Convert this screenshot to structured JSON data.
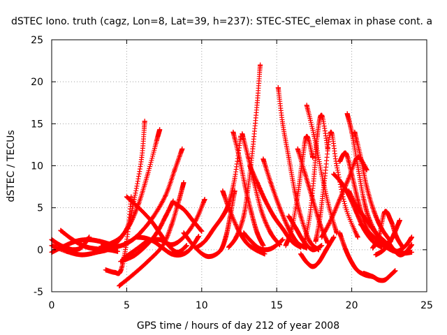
{
  "chart_data": {
    "type": "scatter",
    "title": "dSTEC Iono. truth (cagz, Lon=8, Lat=39, h=237): STEC-STEC_elemax in phase cont. a",
    "xlabel": "GPS time / hours of day 212 of year 2008",
    "ylabel": "dSTEC  / TECUs",
    "xlim": [
      0,
      25
    ],
    "ylim": [
      -5,
      25
    ],
    "xticks": [
      "0",
      "5",
      "10",
      "15",
      "20",
      "25"
    ],
    "yticks": [
      "-5",
      "0",
      "5",
      "10",
      "15",
      "20",
      "25"
    ],
    "grid": true,
    "marker": "+",
    "color": "#ff0000",
    "series": [
      {
        "x": [
          0,
          0.5,
          1,
          1.5,
          2,
          2.5
        ],
        "y": [
          1.2,
          0.6,
          0.2,
          0.0,
          0.3,
          1.5
        ]
      },
      {
        "x": [
          0,
          0.8,
          1.6,
          2.4,
          3.2,
          4.0
        ],
        "y": [
          -0.3,
          0.4,
          1.0,
          1.2,
          1.0,
          0.6
        ]
      },
      {
        "x": [
          0.6,
          1.4,
          2.2,
          3.0,
          3.8,
          4.4
        ],
        "y": [
          2.3,
          1.2,
          0.4,
          0.1,
          0.0,
          -0.2
        ]
      },
      {
        "x": [
          0,
          1,
          2,
          3,
          4,
          5,
          5.5,
          6,
          6.2
        ],
        "y": [
          0.5,
          -0.2,
          -0.6,
          -0.3,
          0.3,
          2.5,
          6,
          11,
          15.3
        ]
      },
      {
        "x": [
          3.3,
          4,
          4.6,
          5.2,
          5.8,
          6.4,
          7.0,
          7.2
        ],
        "y": [
          0.4,
          0.8,
          1.5,
          3,
          5.5,
          9,
          13,
          14.3
        ]
      },
      {
        "x": [
          3.5,
          4.2,
          4.8,
          5.4,
          6.0,
          6.8,
          7.6,
          8.2,
          8.7
        ],
        "y": [
          0.0,
          0.3,
          0.6,
          1.2,
          2.2,
          4.0,
          6.5,
          9.5,
          12
        ]
      },
      {
        "x": [
          3.6,
          4.2,
          4.6,
          5.0,
          5.3
        ],
        "y": [
          -2.4,
          -2.7,
          -2.5,
          1,
          6.3
        ]
      },
      {
        "x": [
          4.5,
          5.4,
          6.4,
          7.4,
          8.0,
          8.5,
          8.8
        ],
        "y": [
          -4.3,
          -3,
          -1.4,
          0.5,
          3,
          6,
          8
        ]
      },
      {
        "x": [
          4.6,
          5.5,
          6.3,
          7.0,
          7.6,
          8.1
        ],
        "y": [
          -1.4,
          -0.7,
          0.5,
          2.0,
          4.0,
          5.8
        ]
      },
      {
        "x": [
          4.8,
          5.6,
          6.4,
          7.2,
          8.0,
          8.8,
          9.6,
          10.2
        ],
        "y": [
          -1.0,
          0.0,
          1.0,
          1.2,
          0.6,
          1.5,
          3.5,
          6.0
        ]
      },
      {
        "x": [
          5.0,
          5.8,
          6.6,
          7.2,
          7.8,
          8.4,
          9.0
        ],
        "y": [
          6.3,
          5.0,
          3.5,
          2.0,
          0.5,
          -0.3,
          0.5
        ]
      },
      {
        "x": [
          5.6,
          6.2,
          6.8,
          7.4,
          8.0,
          8.6,
          9.2,
          9.8
        ],
        "y": [
          1.5,
          1.4,
          1.0,
          0.2,
          -0.5,
          -0.6,
          0.0,
          1.6
        ]
      },
      {
        "x": [
          8.2,
          8.8,
          9.4,
          10.0
        ],
        "y": [
          5.5,
          4.8,
          3.5,
          2.2
        ]
      },
      {
        "x": [
          8.8,
          9.6,
          10.4,
          11.2,
          11.6,
          11.9,
          12.2
        ],
        "y": [
          2.0,
          0.2,
          -0.8,
          -0.2,
          1.5,
          4,
          7
        ]
      },
      {
        "x": [
          9.6,
          10.2,
          10.8,
          11.4,
          11.8,
          12.2,
          12.6
        ],
        "y": [
          0.2,
          1.0,
          2.5,
          4.0,
          5.5,
          8.5,
          13.5
        ]
      },
      {
        "x": [
          11.4,
          11.8,
          12.4,
          13.0,
          13.6,
          14.2
        ],
        "y": [
          7.0,
          5.0,
          2.5,
          0.8,
          0.0,
          -0.5
        ]
      },
      {
        "x": [
          11.8,
          12.3,
          12.8,
          13.1,
          13.4,
          13.7,
          13.9
        ],
        "y": [
          0.3,
          1.5,
          4.0,
          7.5,
          12.0,
          17.5,
          22
        ]
      },
      {
        "x": [
          12.1,
          12.5,
          12.9,
          13.3,
          13.7,
          14.1
        ],
        "y": [
          14.0,
          11.0,
          7.5,
          4.5,
          2.0,
          0.5
        ]
      },
      {
        "x": [
          12.7,
          13.1,
          13.5,
          14.0,
          14.6,
          15.2
        ],
        "y": [
          13.8,
          11.0,
          8.0,
          4.5,
          2.0,
          0.6
        ]
      },
      {
        "x": [
          12.8,
          13.3,
          13.8,
          14.3,
          14.8,
          15.4
        ],
        "y": [
          2.0,
          1.0,
          0.2,
          0.0,
          0.3,
          1.2
        ]
      },
      {
        "x": [
          13.2,
          13.7,
          14.2,
          14.8,
          15.4,
          16.0,
          16.6
        ],
        "y": [
          10.0,
          8.0,
          6.0,
          4.0,
          2.5,
          1.0,
          0.3
        ]
      },
      {
        "x": [
          14.1,
          14.6,
          15.2,
          15.8,
          16.4,
          17.0
        ],
        "y": [
          10.8,
          8.0,
          5.0,
          2.5,
          0.8,
          0.2
        ]
      },
      {
        "x": [
          15.1,
          15.4,
          15.8,
          16.2,
          16.6,
          17.2,
          17.8
        ],
        "y": [
          19.3,
          15.0,
          11.0,
          7.0,
          4.0,
          1.0,
          0.0
        ]
      },
      {
        "x": [
          15.6,
          16.0,
          16.4,
          16.7,
          17.0,
          17.4
        ],
        "y": [
          0.5,
          2.5,
          6.5,
          10.5,
          13.5,
          11.0
        ]
      },
      {
        "x": [
          15.8,
          16.3,
          16.8,
          17.4,
          18.0
        ],
        "y": [
          4.0,
          2.5,
          1.0,
          0.0,
          0.5
        ]
      },
      {
        "x": [
          16.4,
          16.9,
          17.4,
          17.9,
          18.4
        ],
        "y": [
          12.0,
          9.0,
          6.0,
          3.0,
          0.8
        ]
      },
      {
        "x": [
          16.8,
          17.2,
          17.5,
          17.7,
          18.0,
          18.4
        ],
        "y": [
          0.5,
          4.0,
          9.0,
          13.5,
          16.0,
          12.0
        ]
      },
      {
        "x": [
          17.0,
          17.5,
          18.0,
          18.5,
          19.0
        ],
        "y": [
          17.2,
          13.5,
          9.0,
          5.0,
          2.0
        ]
      },
      {
        "x": [
          16.6,
          17.0,
          17.4,
          17.8,
          18.3,
          18.8
        ],
        "y": [
          -0.5,
          -1.5,
          -2.0,
          -1.5,
          0.0,
          1.5
        ]
      },
      {
        "x": [
          17.6,
          17.9,
          18.2,
          18.6,
          19.0,
          19.6,
          20.4
        ],
        "y": [
          1.0,
          4.0,
          8.5,
          14.0,
          10.0,
          5.0,
          1.5
        ]
      },
      {
        "x": [
          18.0,
          18.6,
          19.2,
          19.8,
          20.4,
          21.0
        ],
        "y": [
          1.5,
          3.5,
          6.0,
          8.5,
          11.0,
          9.5
        ]
      },
      {
        "x": [
          18.8,
          19.3,
          19.8,
          20.3,
          20.8,
          21.4,
          22.0
        ],
        "y": [
          9.0,
          8.0,
          6.5,
          4.5,
          2.5,
          1.0,
          0.3
        ]
      },
      {
        "x": [
          19.2,
          19.6,
          20.0,
          20.4,
          20.8,
          21.4
        ],
        "y": [
          10.5,
          11.5,
          9.0,
          6.0,
          3.5,
          1.0
        ]
      },
      {
        "x": [
          19.7,
          20.0,
          20.4,
          20.8,
          21.2,
          21.8,
          22.4
        ],
        "y": [
          16.2,
          14.0,
          10.0,
          6.0,
          3.5,
          1.5,
          0.5
        ]
      },
      {
        "x": [
          20.2,
          20.6,
          21.0,
          21.5,
          22.0,
          22.6
        ],
        "y": [
          14.0,
          11.0,
          7.5,
          4.5,
          2.5,
          1.0
        ]
      },
      {
        "x": [
          19.2,
          19.6,
          20.0,
          20.4,
          20.9,
          21.4
        ],
        "y": [
          2.0,
          0.0,
          -1.5,
          -2.5,
          -3.0,
          -3.2
        ]
      },
      {
        "x": [
          20.8,
          21.4,
          21.8,
          22.2,
          22.6,
          22.9
        ],
        "y": [
          -2.8,
          -3.2,
          -3.6,
          -3.6,
          -3.0,
          -2.5
        ]
      },
      {
        "x": [
          19.8,
          20.4,
          21.0,
          21.6,
          22.2,
          22.8,
          23.4,
          24.0
        ],
        "y": [
          7.0,
          5.0,
          3.5,
          2.0,
          1.0,
          0.0,
          -0.4,
          -0.3
        ]
      },
      {
        "x": [
          20.6,
          21.2,
          21.8,
          22.4,
          23.0,
          23.6,
          24.0
        ],
        "y": [
          3.0,
          2.0,
          1.0,
          0.2,
          -0.2,
          0.5,
          1.5
        ]
      },
      {
        "x": [
          21.4,
          21.8,
          22.2,
          22.6,
          23.0,
          23.4
        ],
        "y": [
          0.2,
          1.5,
          4.5,
          3.5,
          1.5,
          0.3
        ]
      },
      {
        "x": [
          21.6,
          22.0,
          22.4,
          22.8,
          23.2
        ],
        "y": [
          -0.6,
          -0.2,
          0.5,
          1.8,
          3.5
        ]
      },
      {
        "x": [
          22.4,
          22.8,
          23.2,
          23.6,
          24.0
        ],
        "y": [
          1.0,
          0.0,
          -0.6,
          -0.3,
          0.6
        ]
      }
    ]
  }
}
